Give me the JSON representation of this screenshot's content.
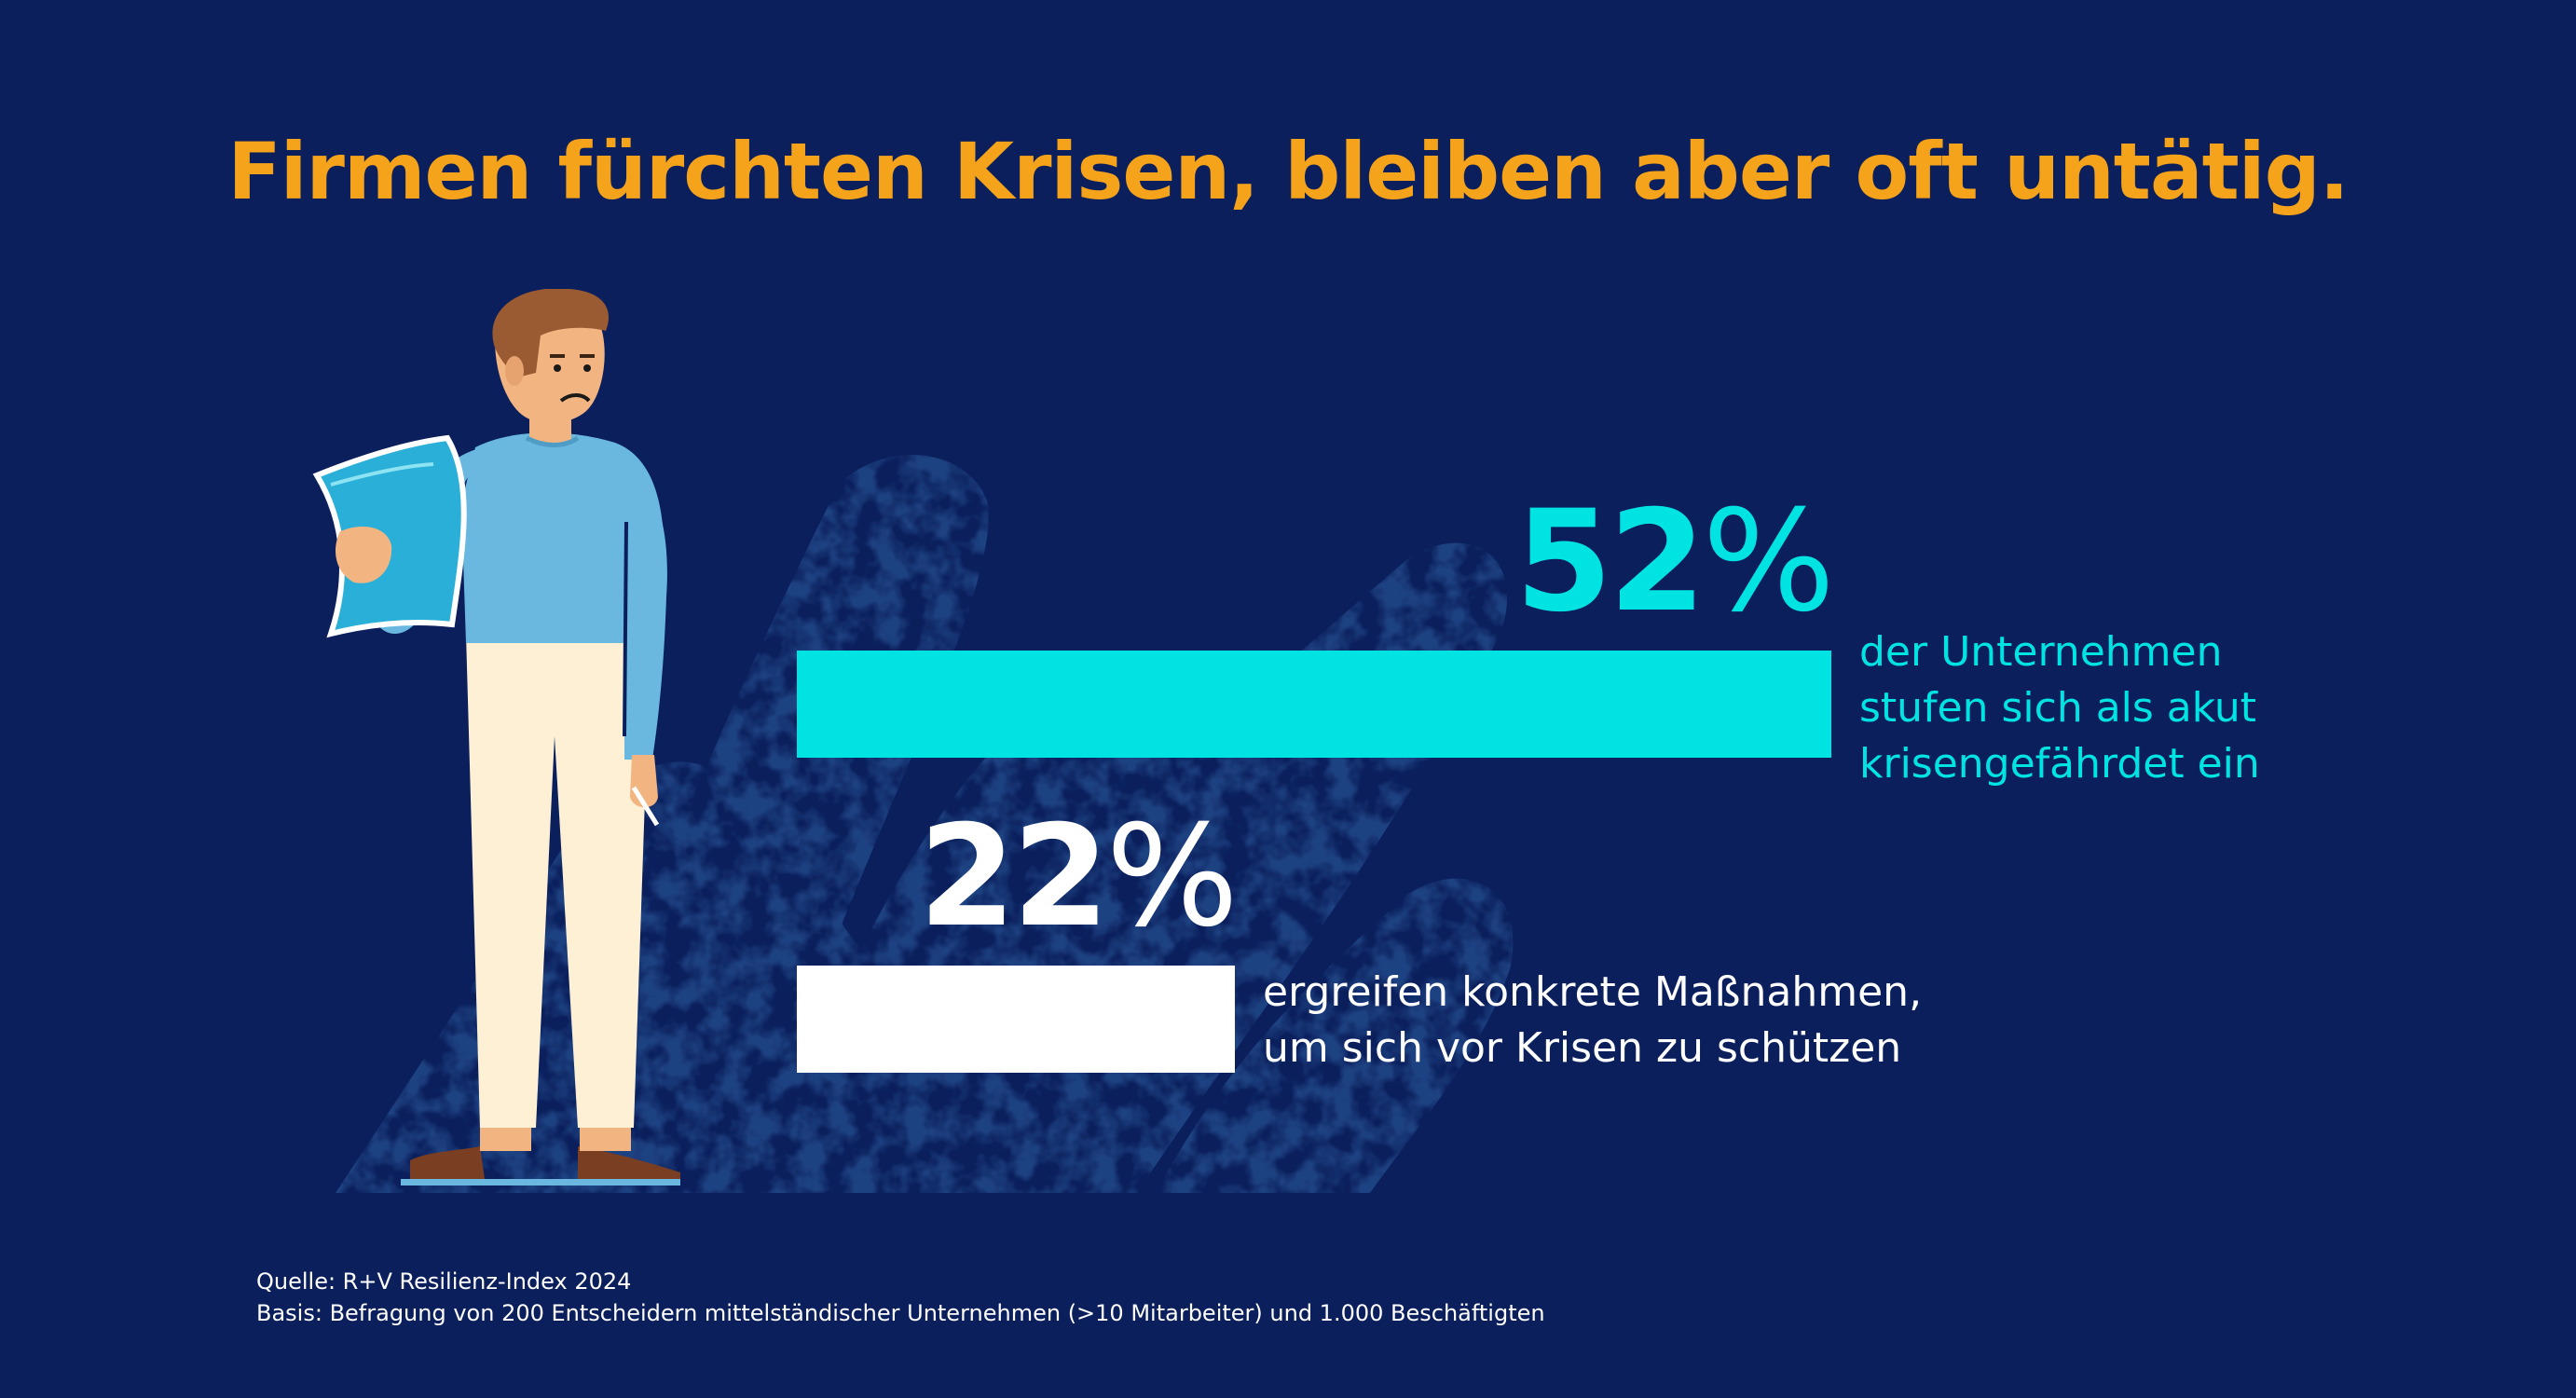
{
  "title": "Firmen fürchten Krisen, bleiben aber oft untätig.",
  "colors": {
    "background": "#0b1f5c",
    "title": "#f5a31a",
    "accent": "#00e3e3",
    "white": "#ffffff",
    "brush": "#1e4282"
  },
  "illustration": {
    "person_icon": "person-reading-document-icon",
    "brush_icon": "brush-stroke-icon"
  },
  "chart_data": {
    "type": "bar",
    "orientation": "horizontal",
    "categories": [
      "der Unternehmen stufen sich als akut krisengefährdet ein",
      "ergreifen konkrete Maßnahmen, um sich vor Krisen zu schützen"
    ],
    "values": [
      52,
      22
    ],
    "unit": "%",
    "xlim": [
      0,
      52
    ],
    "grid": false,
    "legend": "none",
    "bars": [
      {
        "value_text": "52",
        "unit": "%",
        "lines": [
          "der Unternehmen",
          "stufen sich als akut",
          "krisengefährdet ein"
        ],
        "color": "#00e3e3"
      },
      {
        "value_text": "22",
        "unit": "%",
        "lines": [
          "ergreifen konkrete Maßnahmen,",
          "um sich vor Krisen zu schützen"
        ],
        "color": "#ffffff"
      }
    ]
  },
  "footer": {
    "source": "Quelle: R+V Resilienz-Index 2024",
    "basis": "Basis: Befragung von 200 Entscheidern mittelständischer Unternehmen (>10 Mitarbeiter) und 1.000 Beschäftigten"
  }
}
